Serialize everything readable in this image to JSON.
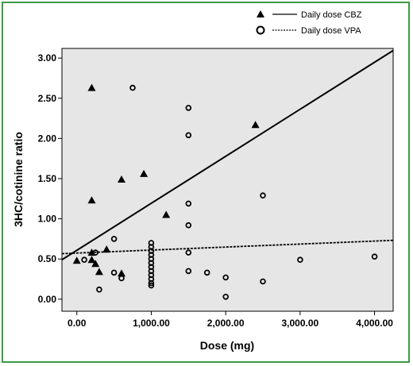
{
  "chart_data": {
    "type": "scatter",
    "xlabel": "Dose (mg)",
    "ylabel": "3HC/cotinine ratio",
    "xlim": [
      -200,
      4250
    ],
    "ylim": [
      -0.15,
      3.12
    ],
    "x_ticks": [
      0,
      1000,
      2000,
      3000,
      4000
    ],
    "x_tick_labels": [
      "0.00",
      "1,000.00",
      "2,000.00",
      "3,000.00",
      "4,000.00"
    ],
    "y_ticks": [
      0,
      0.5,
      1,
      1.5,
      2,
      2.5,
      3
    ],
    "y_tick_labels": [
      "0.00",
      "0.50",
      "1.00",
      "1.50",
      "2.00",
      "2.50",
      "3.00"
    ],
    "grid": false,
    "legend_position": "top-right",
    "legend": [
      {
        "marker": "triangle",
        "line": "solid",
        "label": "Daily dose CBZ"
      },
      {
        "marker": "circle",
        "line": "dashed",
        "label": "Daily dose VPA"
      }
    ],
    "series": [
      {
        "marker": "triangle",
        "points": [
          [
            0,
            0.48
          ],
          [
            200,
            2.63
          ],
          [
            200,
            1.23
          ],
          [
            200,
            0.58
          ],
          [
            200,
            0.49
          ],
          [
            250,
            0.44
          ],
          [
            300,
            0.34
          ],
          [
            400,
            0.62
          ],
          [
            600,
            1.49
          ],
          [
            600,
            0.32
          ],
          [
            900,
            1.56
          ],
          [
            1200,
            1.05
          ],
          [
            2400,
            2.17
          ]
        ]
      },
      {
        "marker": "circle",
        "points": [
          [
            100,
            0.49
          ],
          [
            250,
            0.58
          ],
          [
            300,
            0.12
          ],
          [
            500,
            0.75
          ],
          [
            500,
            0.33
          ],
          [
            600,
            0.26
          ],
          [
            750,
            2.63
          ],
          [
            1000,
            0.7
          ],
          [
            1000,
            0.65
          ],
          [
            1000,
            0.6
          ],
          [
            1000,
            0.55
          ],
          [
            1000,
            0.5
          ],
          [
            1000,
            0.45
          ],
          [
            1000,
            0.4
          ],
          [
            1000,
            0.35
          ],
          [
            1000,
            0.3
          ],
          [
            1000,
            0.25
          ],
          [
            1000,
            0.2
          ],
          [
            1000,
            0.17
          ],
          [
            1500,
            2.38
          ],
          [
            1500,
            2.04
          ],
          [
            1500,
            1.19
          ],
          [
            1500,
            0.92
          ],
          [
            1500,
            0.58
          ],
          [
            1500,
            0.35
          ],
          [
            1750,
            0.33
          ],
          [
            2000,
            0.27
          ],
          [
            2000,
            0.03
          ],
          [
            2500,
            1.29
          ],
          [
            2500,
            0.22
          ],
          [
            3000,
            0.49
          ],
          [
            4000,
            0.53
          ]
        ]
      }
    ],
    "fit_lines": [
      {
        "style": "solid",
        "intercept": 0.608,
        "slope": 0.000585
      },
      {
        "style": "dashed",
        "intercept": 0.574,
        "slope": 3.72e-05
      }
    ]
  }
}
